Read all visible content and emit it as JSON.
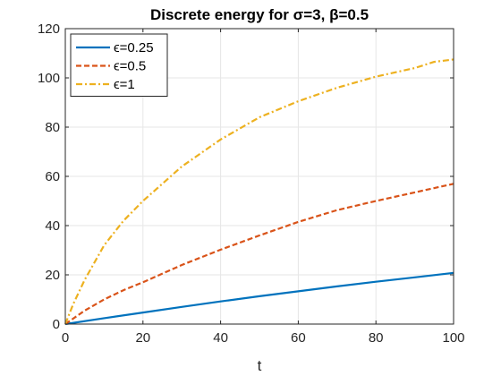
{
  "chart_data": {
    "type": "line",
    "title": "Discrete energy for σ=3, β=0.5",
    "xlabel": "t",
    "ylabel": "",
    "xlim": [
      0,
      100
    ],
    "ylim": [
      0,
      120
    ],
    "xticks": [
      0,
      20,
      40,
      60,
      80,
      100
    ],
    "yticks": [
      0,
      20,
      40,
      60,
      80,
      100,
      120
    ],
    "grid": true,
    "legend_position": "top-left",
    "series": [
      {
        "name": "ϵ=0.25",
        "color": "#0072BD",
        "style": "solid",
        "x": [
          0,
          10,
          20,
          30,
          40,
          50,
          60,
          70,
          80,
          90,
          100
        ],
        "y": [
          0,
          2.4,
          4.7,
          7.0,
          9.2,
          11.3,
          13.3,
          15.3,
          17.2,
          19.0,
          20.8
        ]
      },
      {
        "name": "ϵ=0.5",
        "color": "#D95319",
        "style": "dashed",
        "x": [
          0,
          5,
          10,
          15,
          20,
          30,
          40,
          50,
          60,
          70,
          80,
          90,
          100
        ],
        "y": [
          0,
          5.5,
          10.0,
          13.8,
          17.0,
          24.0,
          30.2,
          36.0,
          41.5,
          46.3,
          50.0,
          53.5,
          57.0
        ]
      },
      {
        "name": "ϵ=1",
        "color": "#EDB120",
        "style": "dashdot",
        "x": [
          0,
          2,
          5,
          10,
          15,
          20,
          30,
          40,
          50,
          60,
          70,
          80,
          90,
          95,
          100
        ],
        "y": [
          0,
          8,
          18,
          32,
          42,
          50,
          64,
          75,
          84,
          90.5,
          96,
          100.5,
          104,
          106.5,
          107.5
        ]
      }
    ]
  }
}
